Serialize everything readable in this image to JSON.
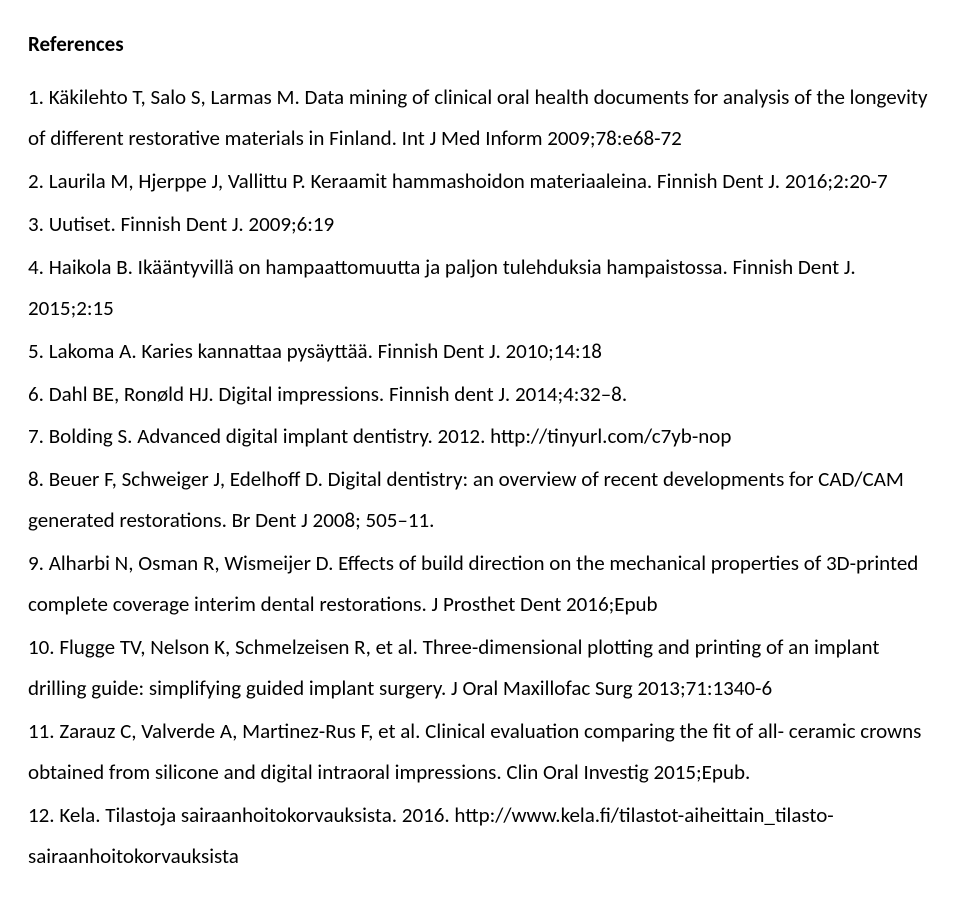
{
  "heading": "References",
  "references": [
    "1. Käkilehto T, Salo S, Larmas M. Data mining of clinical oral health documents for analysis of the longevity of different restorative materials in Finland. Int J Med Inform 2009;78:e68-72",
    "2. Laurila M, Hjerppe J, Vallittu P. Keraamit hammashoidon materiaaleina. Finnish Dent J. 2016;2:20-7",
    "3. Uutiset. Finnish Dent J. 2009;6:19",
    "4. Haikola B. Ikääntyvillä on hampaattomuutta ja paljon tulehduksia hampaistossa. Finnish Dent J. 2015;2:15",
    "5. Lakoma A. Karies kannattaa pysäyttää. Finnish Dent J. 2010;14:18",
    "6. Dahl BE, Ronøld HJ. Digital impressions. Finnish dent J. 2014;4:32–8.",
    "7. Bolding S. Advanced digital implant dentistry. 2012. http://tinyurl.com/c7yb-nop",
    "8. Beuer F, Schweiger J, Edelhoff D. Digital dentistry: an overview of recent developments for CAD/CAM generated restorations. Br Dent J 2008; 505–11.",
    "9. Alharbi N, Osman R, Wismeijer D. Effects of build direction on the mechanical properties of 3D-printed complete coverage interim dental restorations. J Prosthet Dent 2016;Epub",
    "10. Flugge TV, Nelson K, Schmelzeisen R, et al. Three-dimensional plotting and printing of an implant drilling guide: simplifying guided implant surgery. J Oral Maxillofac Surg 2013;71:1340-6",
    "11. Zarauz C, Valverde A, Martinez-Rus F, et al. Clinical evaluation comparing the fit of all- ceramic crowns obtained from silicone and digital intraoral impressions. Clin Oral Investig 2015;Epub.",
    "12. Kela. Tilastoja sairaanhoitokorvauksista. 2016. http://www.kela.fi/tilastot-aiheittain_tilasto-sairaanhoitokorvauksista"
  ],
  "style": {
    "font_family": "Calibri",
    "font_size_pt": 16,
    "heading_weight": "bold",
    "body_weight": "normal",
    "text_color": "#000000",
    "background_color": "#ffffff",
    "line_height": 1.95
  }
}
